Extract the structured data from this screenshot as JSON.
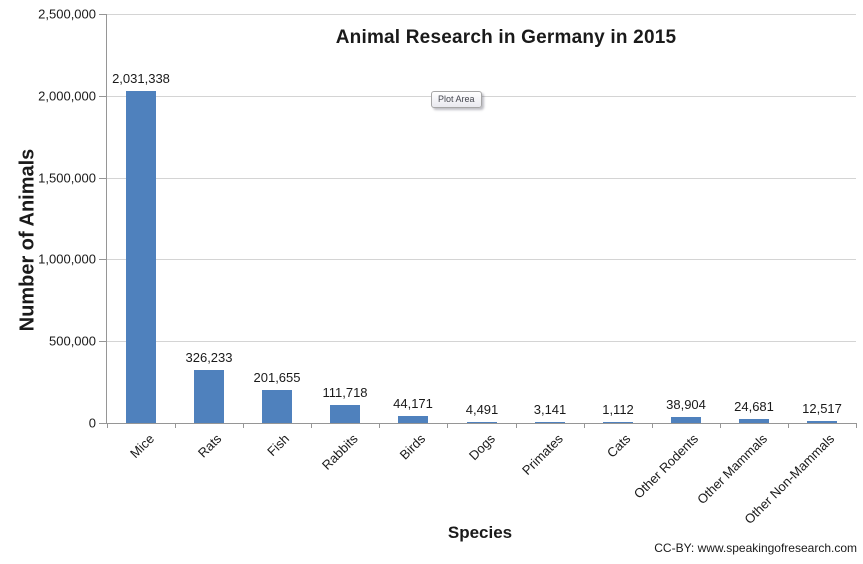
{
  "chart_data": {
    "type": "bar",
    "title": "Animal Research in Germany in 2015",
    "xlabel": "Species",
    "ylabel": "Number of Animals",
    "categories": [
      "Mice",
      "Rats",
      "Fish",
      "Rabbits",
      "Birds",
      "Dogs",
      "Primates",
      "Cats",
      "Other Rodents",
      "Other Mammals",
      "Other Non-Mammals"
    ],
    "values": [
      2031338,
      326233,
      201655,
      111718,
      44171,
      4491,
      3141,
      1112,
      38904,
      24681,
      12517
    ],
    "value_labels": [
      "2,031,338",
      "326,233",
      "201,655",
      "111,718",
      "44,171",
      "4,491",
      "3,141",
      "1,112",
      "38,904",
      "24,681",
      "12,517"
    ],
    "ylim": [
      0,
      2500000
    ],
    "ytick_interval": 500000,
    "ytick_labels": [
      "0",
      "500,000",
      "1,000,000",
      "1,500,000",
      "2,000,000",
      "2,500,000"
    ],
    "grid": true,
    "legend": false,
    "bar_color": "#4f81bd"
  },
  "overlay": {
    "plot_area_label": "Plot Area"
  },
  "footer": {
    "credit": "CC-BY: www.speakingofresearch.com"
  },
  "colors": {
    "bar": "#4f81bd",
    "gridline": "#d4d4d4",
    "axis": "#969696",
    "text": "#1a1a1a",
    "tooltip_text": "#45474f"
  }
}
